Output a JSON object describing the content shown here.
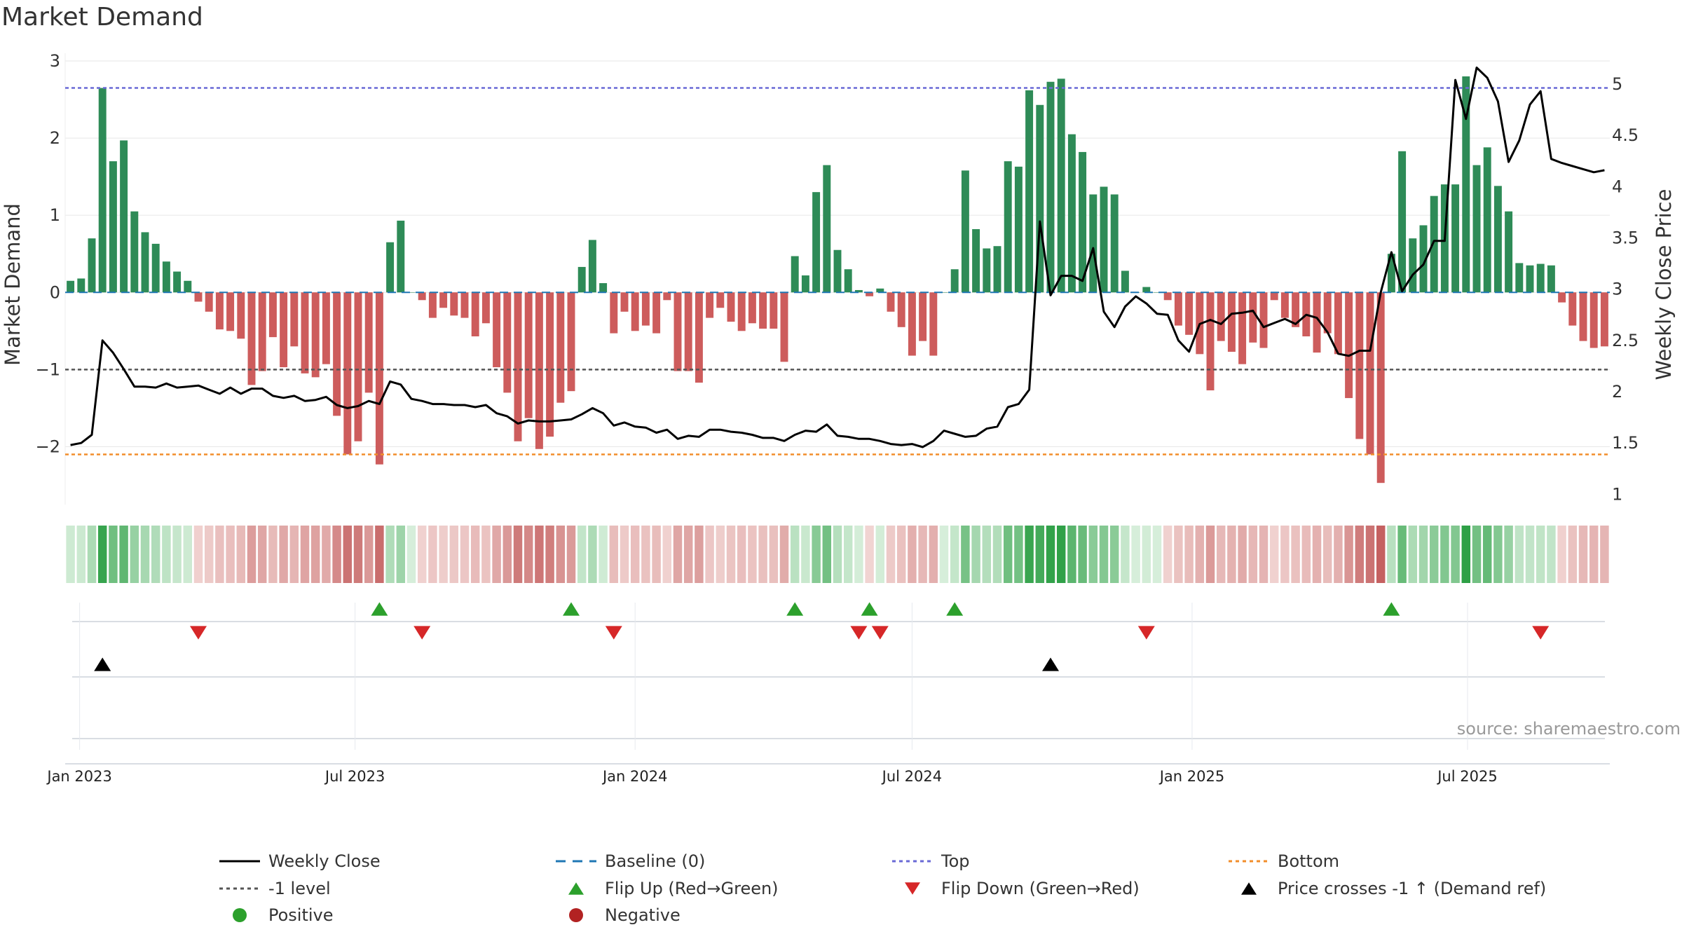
{
  "title": "Market Demand",
  "source_text": "source: sharemaestro.com",
  "colors": {
    "positive": "#2e8b57",
    "negative": "#cd5c5c",
    "price": "#000000",
    "top": "#6a6ad6",
    "bottom": "#f28e2b",
    "level": "#555555",
    "baseline": "#1f77b4",
    "flip_up": "#2ca02c",
    "flip_down": "#d62728",
    "cross": "#000000",
    "positive_dot": "#2ca02c",
    "negative_dot": "#b22222"
  },
  "chart_data": {
    "type": "bar",
    "title": "Market Demand",
    "ylabel": "Market Demand",
    "y2label": "Weekly Close Price",
    "ylim": [
      -2.75,
      3.1
    ],
    "y2lim": [
      0.9,
      5.3
    ],
    "yticks": [
      3,
      2,
      1,
      0,
      -1,
      -2
    ],
    "ytick_labels": [
      "3",
      "2",
      "1",
      "0",
      "−1",
      "−2"
    ],
    "y2ticks": [
      5,
      4.5,
      4,
      3.5,
      3,
      2.5,
      2,
      1.5,
      1
    ],
    "y2tick_labels": [
      "5",
      "4.5",
      "4",
      "3.5",
      "3",
      "2.5",
      "2",
      "1.5",
      "1"
    ],
    "x_dates": [
      "Jan 2023",
      "Jul 2023",
      "Jan 2024",
      "Jul 2024",
      "Jan 2025",
      "Jul 2025"
    ],
    "first_week": "2022-12-26",
    "reference_lines": {
      "top": 2.65,
      "bottom": -2.1,
      "level": -1,
      "baseline": 0
    },
    "demand": [
      0.15,
      0.18,
      0.7,
      2.65,
      1.7,
      1.97,
      1.05,
      0.78,
      0.63,
      0.4,
      0.27,
      0.15,
      -0.12,
      -0.25,
      -0.48,
      -0.5,
      -0.6,
      -1.2,
      -1.02,
      -0.58,
      -0.97,
      -0.7,
      -1.05,
      -1.1,
      -0.93,
      -1.6,
      -2.1,
      -1.93,
      -1.3,
      -2.23,
      0.65,
      0.93,
      0.0,
      -0.1,
      -0.33,
      -0.2,
      -0.3,
      -0.33,
      -0.57,
      -0.4,
      -0.97,
      -1.3,
      -1.93,
      -1.63,
      -2.03,
      -1.87,
      -1.43,
      -1.28,
      0.33,
      0.68,
      0.12,
      -0.53,
      -0.25,
      -0.5,
      -0.43,
      -0.53,
      -0.1,
      -1.02,
      -1.02,
      -1.17,
      -0.33,
      -0.2,
      -0.38,
      -0.5,
      -0.4,
      -0.47,
      -0.47,
      -0.9,
      0.47,
      0.22,
      1.3,
      1.65,
      0.55,
      0.3,
      0.03,
      -0.05,
      0.05,
      -0.25,
      -0.45,
      -0.82,
      -0.63,
      -0.82,
      0.0,
      0.3,
      1.58,
      0.82,
      0.57,
      0.6,
      1.7,
      1.63,
      2.62,
      2.43,
      2.73,
      2.77,
      2.05,
      1.82,
      1.27,
      1.37,
      1.27,
      0.28,
      0.0,
      0.07,
      0.0,
      -0.1,
      -0.43,
      -0.55,
      -0.8,
      -1.27,
      -0.63,
      -0.77,
      -0.93,
      -0.65,
      -0.72,
      -0.1,
      -0.33,
      -0.45,
      -0.57,
      -0.78,
      -0.53,
      -0.8,
      -1.37,
      -1.9,
      -2.1,
      -2.47,
      0.5,
      1.83,
      0.7,
      0.87,
      1.25,
      1.4,
      1.4,
      2.8,
      1.65,
      1.88,
      1.38,
      1.05,
      0.38,
      0.35,
      0.37,
      0.35,
      -0.13,
      -0.43,
      -0.63,
      -0.72,
      -0.7
    ],
    "price": [
      1.48,
      1.5,
      1.58,
      2.5,
      2.38,
      2.22,
      2.05,
      2.05,
      2.04,
      2.08,
      2.04,
      2.05,
      2.06,
      2.02,
      1.98,
      2.04,
      1.98,
      2.03,
      2.03,
      1.96,
      1.94,
      1.96,
      1.91,
      1.92,
      1.95,
      1.87,
      1.84,
      1.86,
      1.91,
      1.88,
      2.1,
      2.07,
      1.93,
      1.91,
      1.88,
      1.88,
      1.87,
      1.87,
      1.85,
      1.87,
      1.79,
      1.76,
      1.69,
      1.72,
      1.71,
      1.71,
      1.72,
      1.73,
      1.78,
      1.84,
      1.79,
      1.67,
      1.7,
      1.66,
      1.65,
      1.6,
      1.63,
      1.54,
      1.57,
      1.56,
      1.63,
      1.63,
      1.61,
      1.6,
      1.58,
      1.55,
      1.55,
      1.52,
      1.58,
      1.62,
      1.61,
      1.68,
      1.57,
      1.56,
      1.54,
      1.54,
      1.52,
      1.49,
      1.48,
      1.49,
      1.46,
      1.52,
      1.62,
      1.59,
      1.56,
      1.57,
      1.64,
      1.66,
      1.85,
      1.88,
      2.02,
      3.66,
      2.94,
      3.13,
      3.13,
      3.08,
      3.4,
      2.78,
      2.63,
      2.83,
      2.93,
      2.86,
      2.76,
      2.75,
      2.5,
      2.39,
      2.66,
      2.7,
      2.66,
      2.76,
      2.77,
      2.79,
      2.63,
      2.67,
      2.71,
      2.66,
      2.75,
      2.72,
      2.58,
      2.37,
      2.35,
      2.4,
      2.4,
      2.97,
      3.36,
      2.98,
      3.14,
      3.24,
      3.47,
      3.47,
      5.04,
      4.66,
      5.16,
      5.06,
      4.83,
      4.24,
      4.45,
      4.8,
      4.93,
      4.27,
      4.23,
      4.2,
      4.17,
      4.14,
      4.16
    ],
    "flip_up": [
      29,
      47,
      68,
      75,
      83,
      124
    ],
    "flip_down": [
      12,
      33,
      51,
      74,
      76,
      101,
      138
    ],
    "price_cross_up": [
      3,
      92
    ]
  },
  "x_axis": {
    "labels": [
      "Jan 2023",
      "Jul 2023",
      "Jan 2024",
      "Jul 2024",
      "Jan 2025",
      "Jul 2025"
    ]
  },
  "legend": [
    {
      "label": "Weekly Close",
      "symbol": "solid-line",
      "color": "#000000"
    },
    {
      "label": "Baseline (0)",
      "symbol": "dashed-line",
      "color": "#1f77b4"
    },
    {
      "label": "Top",
      "symbol": "dotted-line",
      "color": "#6a6ad6"
    },
    {
      "label": "Bottom",
      "symbol": "dotted-line",
      "color": "#f28e2b"
    },
    {
      "label": "-1 level",
      "symbol": "dotted-line",
      "color": "#555555"
    },
    {
      "label": "Flip Up (Red→Green)",
      "symbol": "triangle-up",
      "color": "#2ca02c"
    },
    {
      "label": "Flip Down (Green→Red)",
      "symbol": "triangle-down",
      "color": "#d62728"
    },
    {
      "label": "Price crosses -1 ↑ (Demand ref)",
      "symbol": "triangle-up",
      "color": "#000000"
    },
    {
      "label": "Positive",
      "symbol": "circle",
      "color": "#2ca02c"
    },
    {
      "label": "Negative",
      "symbol": "circle",
      "color": "#b22222"
    }
  ]
}
